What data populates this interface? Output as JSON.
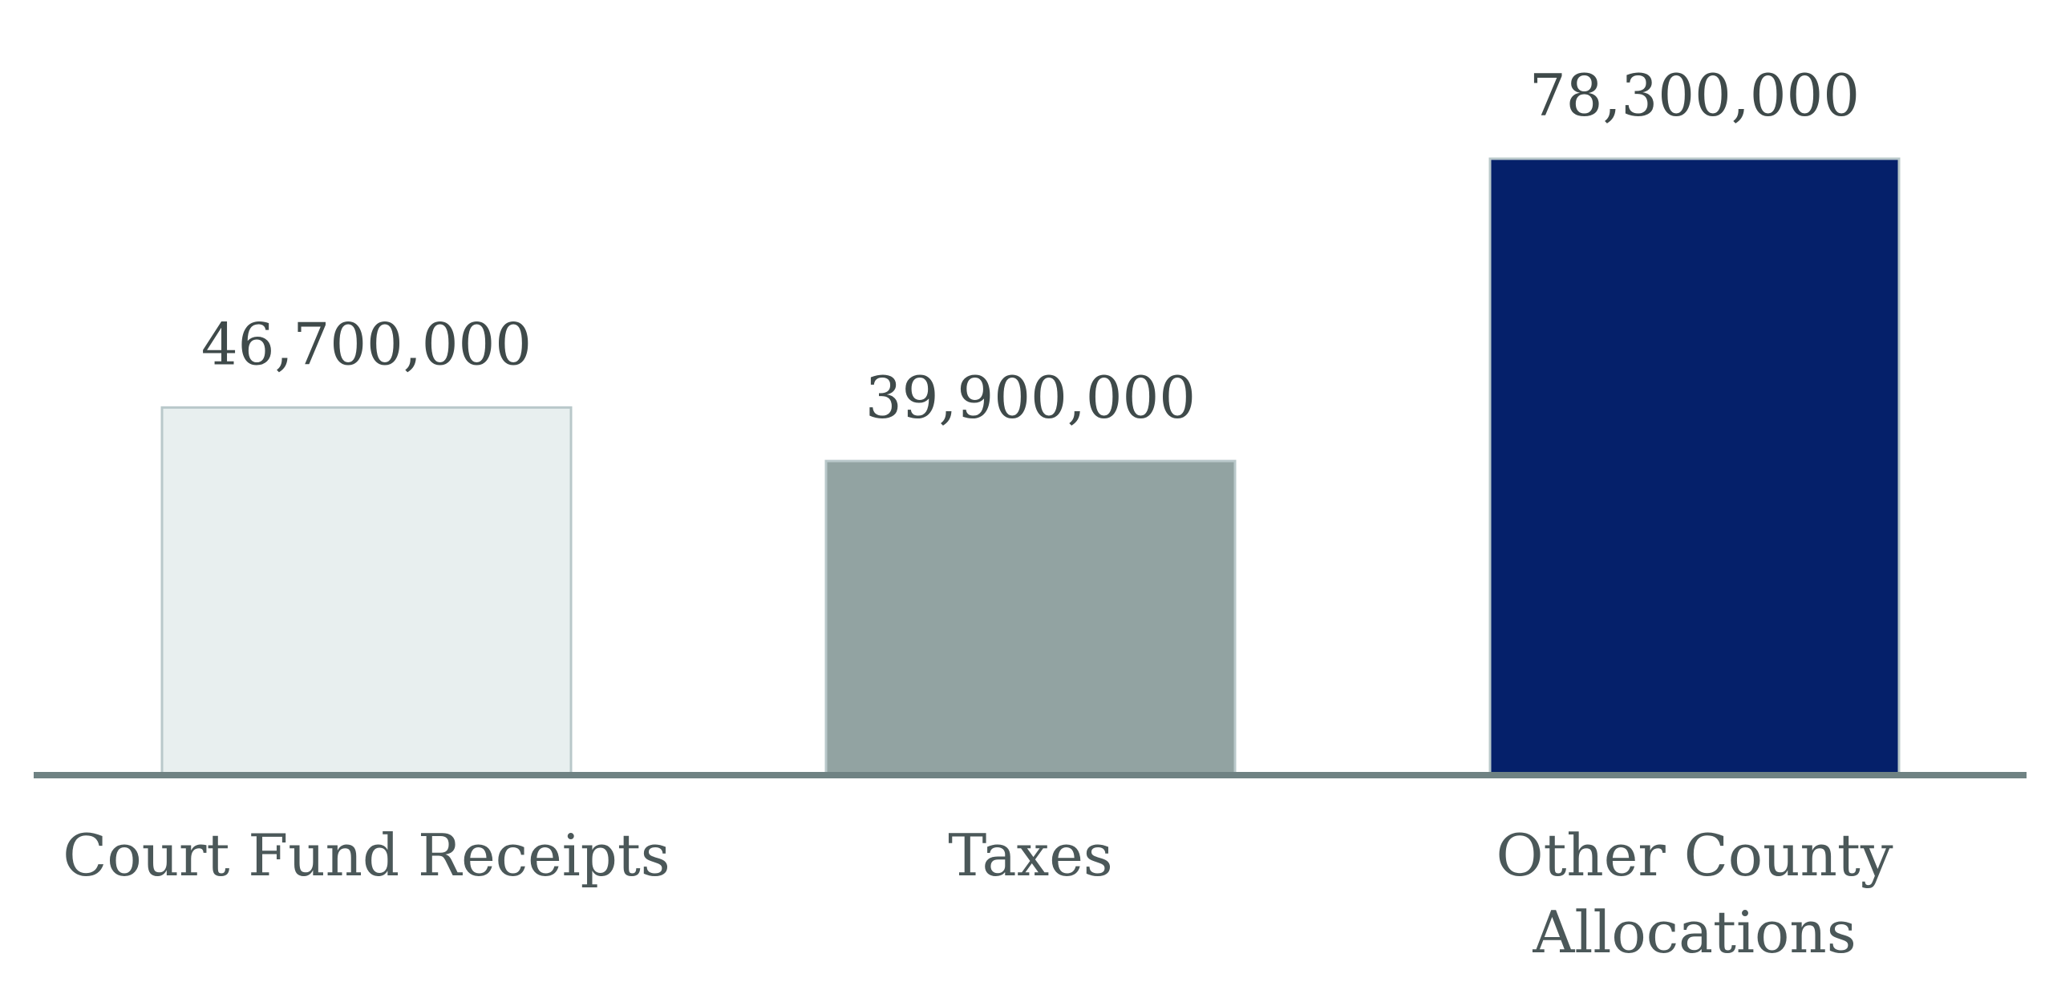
{
  "chart_data": {
    "type": "bar",
    "categories": [
      [
        "Court Fund Receipts"
      ],
      [
        "Taxes"
      ],
      [
        "Other County",
        "Allocations"
      ]
    ],
    "values": [
      46700000,
      39900000,
      78300000
    ],
    "value_labels": [
      "46,700,000",
      "39,900,000",
      "78,300,000"
    ],
    "colors": [
      "#e8efef",
      "#92a3a2",
      "#05206a"
    ],
    "bar_outline_color": "#b9c8ca",
    "axis_color": "#6f8283",
    "title": "",
    "xlabel": "",
    "ylabel": "",
    "ylim": [
      0,
      78300000
    ],
    "grid": false,
    "legend": "none"
  }
}
